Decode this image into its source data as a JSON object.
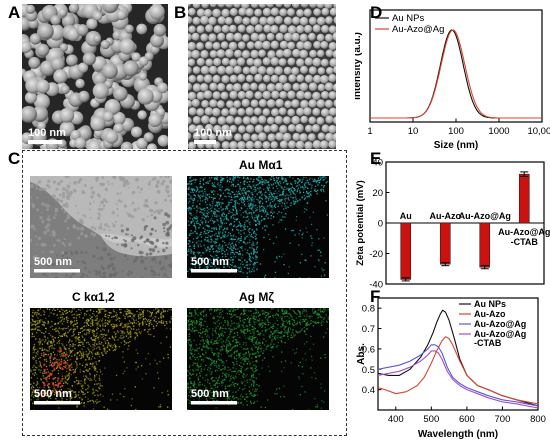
{
  "panel_letters": {
    "a": "A",
    "b": "B",
    "c": "C",
    "d": "D",
    "e": "E",
    "f": "F"
  },
  "sem": {
    "a_scale": "100 nm",
    "b_scale": "100 nm"
  },
  "tem": {
    "panels": [
      {
        "title": "",
        "scale": "500 nm",
        "tint": "#8c8c8c"
      },
      {
        "title": "Au Mα1",
        "scale": "500 nm",
        "tint": "#23b3b3"
      },
      {
        "title": "C kα1,2",
        "scale": "500 nm",
        "tint": "#a6a11a"
      },
      {
        "title": "Ag Mζ",
        "scale": "500 nm",
        "tint": "#1f9a32"
      }
    ]
  },
  "chart_data": [
    {
      "id": "D",
      "type": "line",
      "xlabel": "Size (nm)",
      "ylabel": "Intensity (a.u.)",
      "xscale": "log",
      "xlim": [
        1,
        10000
      ],
      "xticks": [
        "1",
        "10",
        "100",
        "1000",
        "10,000"
      ],
      "grid": false,
      "legend_position": "top-left",
      "series": [
        {
          "name": "Au NPs",
          "color": "#111111",
          "peak_x": 80,
          "width": 0.265
        },
        {
          "name": "Au-Azo@Ag",
          "color": "#d9442e",
          "peak_x": 85,
          "width": 0.275
        }
      ]
    },
    {
      "id": "E",
      "type": "bar",
      "ylabel": "Zeta potential (mV)",
      "ylim": [
        -40,
        40
      ],
      "yticks": [
        -40,
        -20,
        0,
        20,
        40
      ],
      "bar_color": "#cc1111",
      "categories": [
        "Au",
        "Au-Azo",
        "Au-Azo@Ag",
        "Au-Azo@Ag\n-CTAB"
      ],
      "values": [
        -37,
        -27,
        -29,
        32
      ],
      "errors": [
        1,
        1,
        1,
        1.5
      ]
    },
    {
      "id": "F",
      "type": "line",
      "xlabel": "Wavelength (nm)",
      "ylabel": "Abs.",
      "xlim": [
        350,
        800
      ],
      "ylim": [
        0.3,
        0.85
      ],
      "xticks": [
        400,
        500,
        600,
        700,
        800
      ],
      "yticks": [
        0.4,
        0.5,
        0.6,
        0.7,
        0.8
      ],
      "legend_position": "top-right",
      "series": [
        {
          "name": "Au NPs",
          "color": "#111111",
          "x": [
            350,
            380,
            410,
            440,
            470,
            490,
            505,
            515,
            525,
            532,
            540,
            550,
            565,
            580,
            600,
            630,
            660,
            700,
            740,
            800
          ],
          "y": [
            0.48,
            0.47,
            0.47,
            0.5,
            0.56,
            0.62,
            0.68,
            0.73,
            0.77,
            0.79,
            0.78,
            0.74,
            0.65,
            0.55,
            0.47,
            0.42,
            0.4,
            0.37,
            0.35,
            0.32
          ]
        },
        {
          "name": "Au-Azo",
          "color": "#d9442e",
          "x": [
            350,
            370,
            400,
            430,
            460,
            480,
            500,
            515,
            530,
            540,
            550,
            560,
            580,
            600,
            630,
            660,
            700,
            740,
            800
          ],
          "y": [
            0.41,
            0.4,
            0.38,
            0.39,
            0.42,
            0.46,
            0.53,
            0.59,
            0.64,
            0.66,
            0.65,
            0.62,
            0.54,
            0.47,
            0.42,
            0.4,
            0.37,
            0.35,
            0.33
          ]
        },
        {
          "name": "Au-Azo@Ag",
          "color": "#5a55e0",
          "x": [
            350,
            380,
            410,
            440,
            470,
            490,
            500,
            510,
            520,
            530,
            545,
            560,
            580,
            600,
            630,
            660,
            700,
            740,
            800
          ],
          "y": [
            0.5,
            0.51,
            0.52,
            0.54,
            0.57,
            0.6,
            0.62,
            0.62,
            0.61,
            0.58,
            0.51,
            0.46,
            0.43,
            0.41,
            0.39,
            0.37,
            0.35,
            0.34,
            0.32
          ]
        },
        {
          "name": "Au-Azo@Ag\n-CTAB",
          "color": "#a050c8",
          "x": [
            350,
            380,
            410,
            440,
            470,
            490,
            500,
            510,
            520,
            530,
            545,
            560,
            580,
            600,
            630,
            660,
            700,
            740,
            800
          ],
          "y": [
            0.47,
            0.48,
            0.49,
            0.51,
            0.54,
            0.57,
            0.59,
            0.59,
            0.58,
            0.55,
            0.49,
            0.45,
            0.42,
            0.4,
            0.38,
            0.36,
            0.34,
            0.33,
            0.31
          ]
        }
      ]
    }
  ]
}
